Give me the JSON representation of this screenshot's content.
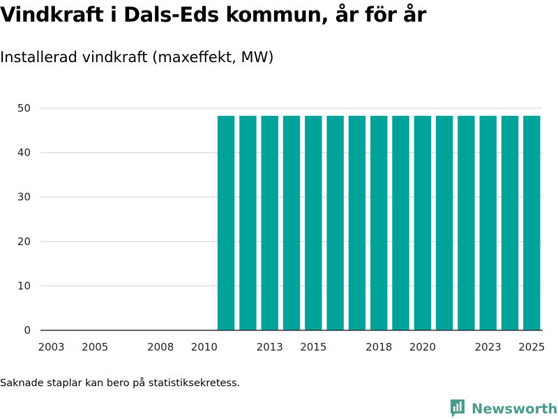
{
  "chart_data": {
    "type": "bar",
    "title": "Vindkraft i Dals-Eds kommun, år för år",
    "subtitle": "Installerad vindkraft (maxeffekt, MW)",
    "xlabel": "",
    "ylabel": "",
    "ylim": [
      0,
      50
    ],
    "yticks": [
      0,
      10,
      20,
      30,
      40,
      50
    ],
    "grid": true,
    "categories": [
      2003,
      2004,
      2005,
      2006,
      2007,
      2008,
      2009,
      2010,
      2011,
      2012,
      2013,
      2014,
      2015,
      2016,
      2017,
      2018,
      2019,
      2020,
      2021,
      2022,
      2023,
      2024,
      2025
    ],
    "values": [
      0,
      0,
      0,
      0,
      0,
      0,
      0,
      0,
      48.3,
      48.3,
      48.3,
      48.3,
      48.3,
      48.3,
      48.3,
      48.3,
      48.3,
      48.3,
      48.3,
      48.3,
      48.3,
      48.3,
      48.3
    ],
    "xtick_labels": [
      "2003",
      "2005",
      "2008",
      "2010",
      "2013",
      "2015",
      "2018",
      "2020",
      "2023",
      "2025"
    ],
    "bar_color": "#00a399",
    "grid_color": "#dcdcdc",
    "axis_color": "#333333"
  },
  "footnote": "Saknade staplar kan bero på statistiksekretess.",
  "brand": {
    "name": "Newsworthy",
    "color": "#4a9b8c"
  }
}
